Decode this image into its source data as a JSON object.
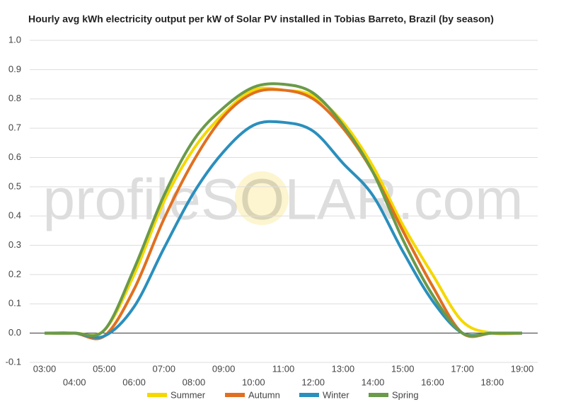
{
  "chart_data": {
    "type": "line",
    "title": "Hourly avg kWh electricity output per kW of Solar PV installed in Tobias Barreto, Brazil (by season)",
    "watermark": "profileSOLAR.com",
    "categories": [
      "03:00",
      "04:00",
      "05:00",
      "06:00",
      "07:00",
      "08:00",
      "09:00",
      "10:00",
      "11:00",
      "12:00",
      "13:00",
      "14:00",
      "15:00",
      "16:00",
      "17:00",
      "18:00",
      "19:00"
    ],
    "series": [
      {
        "name": "Summer",
        "color": "#f5d800",
        "values": [
          0,
          0,
          0.01,
          0.2,
          0.45,
          0.63,
          0.75,
          0.83,
          0.83,
          0.81,
          0.72,
          0.57,
          0.37,
          0.2,
          0.04,
          0,
          0
        ]
      },
      {
        "name": "Autumn",
        "color": "#e07020",
        "values": [
          0,
          0,
          -0.01,
          0.15,
          0.39,
          0.59,
          0.74,
          0.82,
          0.83,
          0.8,
          0.7,
          0.55,
          0.35,
          0.16,
          0,
          0,
          0
        ]
      },
      {
        "name": "Winter",
        "color": "#2a8fbd",
        "values": [
          0,
          0,
          -0.01,
          0.09,
          0.29,
          0.48,
          0.62,
          0.71,
          0.72,
          0.69,
          0.58,
          0.47,
          0.28,
          0.11,
          0,
          0,
          0
        ]
      },
      {
        "name": "Spring",
        "color": "#6a9a4a",
        "values": [
          0,
          0,
          0.01,
          0.22,
          0.47,
          0.66,
          0.77,
          0.84,
          0.85,
          0.82,
          0.71,
          0.55,
          0.32,
          0.13,
          0,
          0,
          0
        ]
      }
    ],
    "ylim": [
      -0.1,
      1.0
    ],
    "yticks": [
      {
        "value": -0.1,
        "label": "-0.1"
      },
      {
        "value": 0,
        "label": "0.0"
      },
      {
        "value": 0.1,
        "label": "0.1"
      },
      {
        "value": 0.2,
        "label": "0.2"
      },
      {
        "value": 0.3,
        "label": "0.3"
      },
      {
        "value": 0.4,
        "label": "0.4"
      },
      {
        "value": 0.5,
        "label": "0.5"
      },
      {
        "value": 0.6,
        "label": "0.6"
      },
      {
        "value": 0.7,
        "label": "0.7"
      },
      {
        "value": 0.8,
        "label": "0.8"
      },
      {
        "value": 0.9,
        "label": "0.9"
      },
      {
        "value": 1,
        "label": "1.0"
      }
    ],
    "grid": true,
    "legend": "bottom"
  }
}
